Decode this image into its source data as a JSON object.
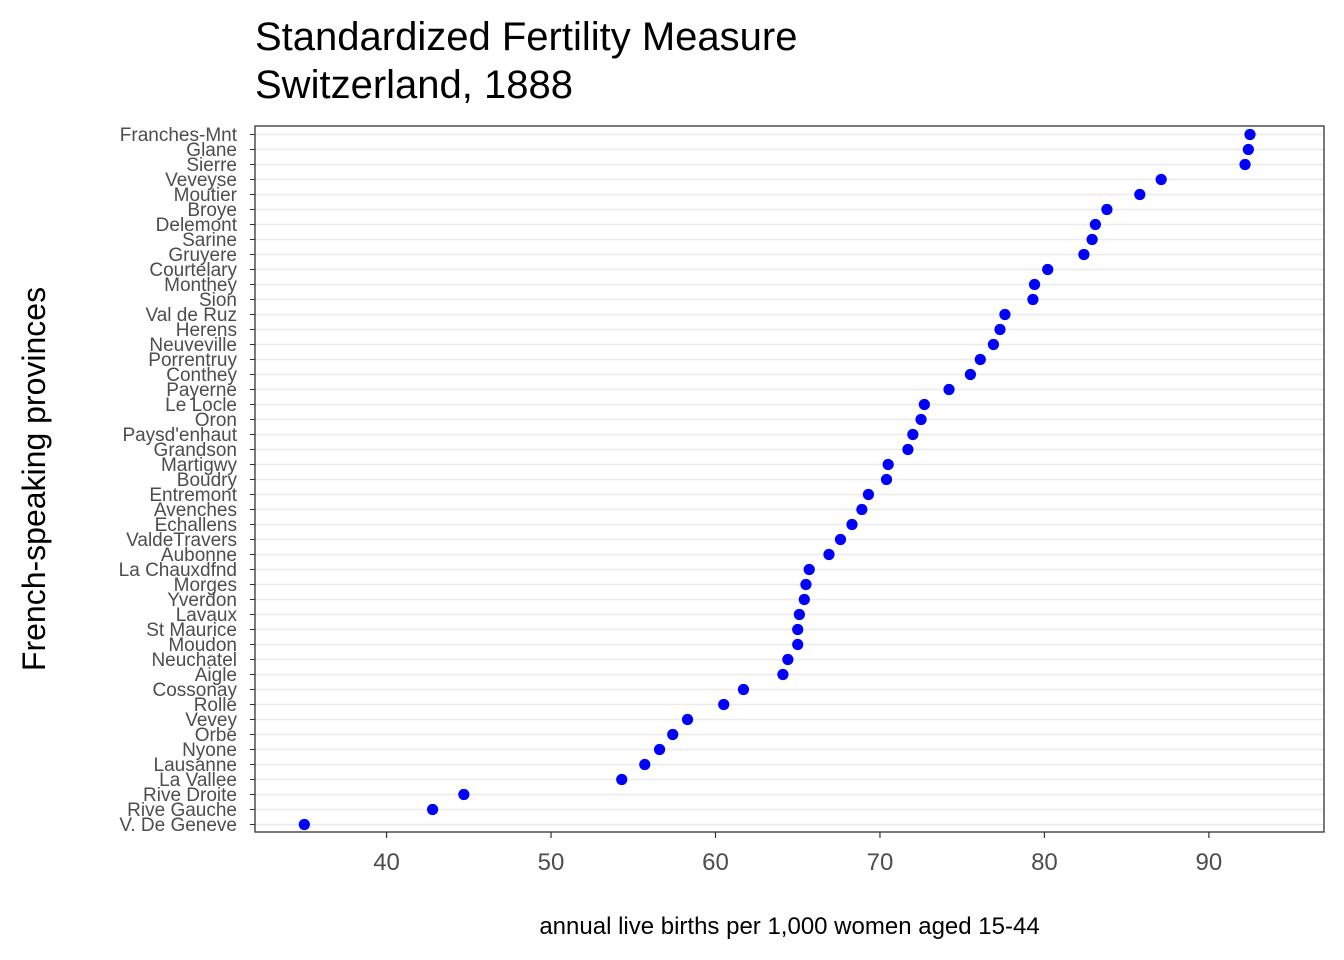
{
  "chart_data": {
    "type": "scatter",
    "title": [
      "Standardized Fertility Measure",
      "Switzerland, 1888"
    ],
    "xlabel": "annual live births per 1,000 women aged 15-44",
    "ylabel": "French-speaking provinces",
    "xlim": [
      32,
      97
    ],
    "xticks": [
      40,
      50,
      60,
      70,
      80,
      90
    ],
    "grid": "horizontal",
    "point_color": "#0000ff",
    "categories": [
      "Franches-Mnt",
      "Glane",
      "Sierre",
      "Veveyse",
      "Moutier",
      "Broye",
      "Delemont",
      "Sarine",
      "Gruyere",
      "Courtelary",
      "Monthey",
      "Sion",
      "Val de Ruz",
      "Herens",
      "Neuveville",
      "Porrentruy",
      "Conthey",
      "Payerne",
      "Le Locle",
      "Oron",
      "Paysd'enhaut",
      "Grandson",
      "Martigwy",
      "Boudry",
      "Entremont",
      "Avenches",
      "Echallens",
      "ValdeTravers",
      "Aubonne",
      "La Chauxdfnd",
      "Morges",
      "Yverdon",
      "Lavaux",
      "St Maurice",
      "Moudon",
      "Neuchatel",
      "Aigle",
      "Cossonay",
      "Rolle",
      "Vevey",
      "Orbe",
      "Nyone",
      "Lausanne",
      "La Vallee",
      "Rive Droite",
      "Rive Gauche",
      "V. De Geneve"
    ],
    "values": [
      92.5,
      92.4,
      92.2,
      87.1,
      85.8,
      83.8,
      83.1,
      82.9,
      82.4,
      80.2,
      79.4,
      79.3,
      77.6,
      77.3,
      76.9,
      76.1,
      75.5,
      74.2,
      72.7,
      72.5,
      72.0,
      71.7,
      70.5,
      70.4,
      69.3,
      68.9,
      68.3,
      67.6,
      66.9,
      65.7,
      65.5,
      65.4,
      65.1,
      65.0,
      65.0,
      64.4,
      64.1,
      61.7,
      60.5,
      58.3,
      57.4,
      56.6,
      55.7,
      54.3,
      44.7,
      42.8,
      35.0
    ]
  }
}
